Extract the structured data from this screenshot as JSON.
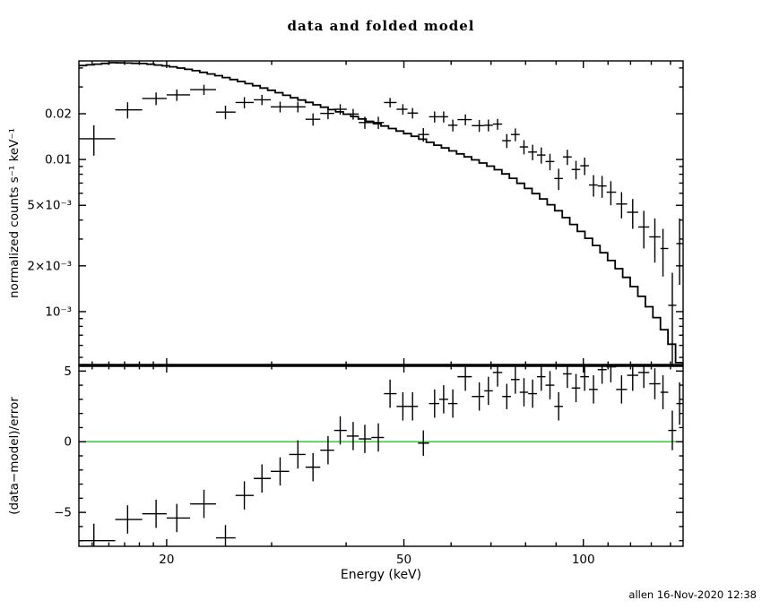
{
  "title": "data and folded model",
  "footer": "allen 16-Nov-2020 12:38",
  "colors": {
    "foreground": "#000000",
    "background": "#ffffff",
    "zero_line": "#00dd00"
  },
  "chart_data": [
    {
      "type": "scatter",
      "panel": "top",
      "title": "data and folded model",
      "xlabel": "Energy (keV)",
      "ylabel": "normalized counts s⁻¹ keV⁻¹",
      "xscale": "log",
      "yscale": "log",
      "xlim": [
        14.25,
        147
      ],
      "ylim": [
        0.000443,
        0.0445
      ],
      "grid": false,
      "legend": "none",
      "xticks": {
        "major": [
          {
            "v": 20,
            "label": "20"
          },
          {
            "v": 50,
            "label": "50"
          },
          {
            "v": 100,
            "label": "100"
          }
        ],
        "minor": [
          15,
          16,
          17,
          18,
          19,
          30,
          40,
          60,
          70,
          80,
          90,
          110,
          120,
          130,
          140
        ]
      },
      "yticks": {
        "major": [
          {
            "v": 0.02,
            "label": "0.02"
          },
          {
            "v": 0.01,
            "label": "0.01"
          },
          {
            "v": 0.005,
            "label": "5×10⁻³"
          },
          {
            "v": 0.002,
            "label": "2×10⁻³"
          },
          {
            "v": 0.001,
            "label": "10⁻³"
          }
        ],
        "minor": [
          0.04,
          0.03,
          0.009,
          0.008,
          0.007,
          0.006,
          0.004,
          0.003,
          0.0009,
          0.0008,
          0.0007,
          0.0006,
          0.0005
        ]
      },
      "series": [
        {
          "name": "data",
          "style": "cross-error-bars",
          "columns": [
            "E_keV",
            "E_lo",
            "E_hi",
            "rate",
            "rate_err",
            "resid_sigma",
            "resid_err"
          ],
          "points": [
            [
              15.1,
              13.9,
              16.4,
              0.0137,
              0.0031,
              -7.0,
              1.2
            ],
            [
              17.2,
              16.4,
              18.2,
              0.0212,
              0.0026,
              -5.5,
              1.0
            ],
            [
              19.2,
              18.2,
              20.0,
              0.0252,
              0.0024,
              -5.1,
              1.0
            ],
            [
              20.8,
              20.0,
              21.9,
              0.0266,
              0.0023,
              -5.4,
              1.0
            ],
            [
              23.1,
              21.9,
              24.2,
              0.0288,
              0.0022,
              -4.4,
              1.0
            ],
            [
              25.1,
              24.2,
              26.1,
              0.0205,
              0.0021,
              -6.8,
              0.9
            ],
            [
              27.0,
              26.1,
              28.0,
              0.0237,
              0.002,
              -3.8,
              1.0
            ],
            [
              28.9,
              28.0,
              29.9,
              0.0247,
              0.0019,
              -2.6,
              1.0
            ],
            [
              31.0,
              29.9,
              32.1,
              0.0222,
              0.0018,
              -2.1,
              1.0
            ],
            [
              33.2,
              32.1,
              34.2,
              0.0222,
              0.0018,
              -0.9,
              1.0
            ],
            [
              35.2,
              34.2,
              36.2,
              0.0184,
              0.0017,
              -1.8,
              1.0
            ],
            [
              37.3,
              36.2,
              38.2,
              0.0201,
              0.0017,
              -0.6,
              1.0
            ],
            [
              39.1,
              38.2,
              40.1,
              0.0214,
              0.0017,
              0.8,
              1.0
            ],
            [
              41.1,
              40.1,
              42.0,
              0.0199,
              0.0016,
              0.4,
              1.0
            ],
            [
              43.0,
              42.0,
              44.1,
              0.0175,
              0.0016,
              0.2,
              1.0
            ],
            [
              45.3,
              44.1,
              46.3,
              0.0175,
              0.0016,
              0.3,
              1.0
            ],
            [
              47.4,
              46.3,
              48.6,
              0.0237,
              0.0017,
              3.4,
              1.0
            ],
            [
              49.8,
              48.6,
              50.7,
              0.0214,
              0.0017,
              2.5,
              1.0
            ],
            [
              51.7,
              50.7,
              52.8,
              0.0202,
              0.0016,
              2.5,
              1.0
            ],
            [
              53.9,
              52.8,
              55.1,
              0.0146,
              0.0015,
              -0.1,
              0.9
            ],
            [
              56.3,
              55.1,
              57.3,
              0.0191,
              0.0016,
              2.7,
              1.0
            ],
            [
              58.3,
              57.3,
              59.3,
              0.0191,
              0.0016,
              3.0,
              1.0
            ],
            [
              60.4,
              59.3,
              61.5,
              0.0168,
              0.0015,
              2.7,
              1.0
            ],
            [
              63.4,
              61.5,
              65.0,
              0.0183,
              0.0015,
              4.6,
              1.0
            ],
            [
              66.9,
              65.0,
              68.2,
              0.0167,
              0.0015,
              3.2,
              1.0
            ],
            [
              69.3,
              68.2,
              70.5,
              0.0168,
              0.0015,
              3.6,
              1.0
            ],
            [
              71.8,
              70.5,
              73.1,
              0.0171,
              0.0014,
              4.9,
              1.0
            ],
            [
              74.4,
              73.1,
              75.6,
              0.0133,
              0.0014,
              3.2,
              0.9
            ],
            [
              76.9,
              75.6,
              78.2,
              0.0146,
              0.0014,
              4.4,
              1.0
            ],
            [
              79.5,
              78.2,
              80.8,
              0.0121,
              0.0013,
              3.5,
              1.0
            ],
            [
              82.2,
              80.8,
              83.6,
              0.0112,
              0.0013,
              3.4,
              1.0
            ],
            [
              85.0,
              83.6,
              86.4,
              0.0107,
              0.0013,
              4.6,
              1.0
            ],
            [
              87.9,
              86.4,
              89.4,
              0.0097,
              0.0012,
              4.0,
              1.0
            ],
            [
              90.9,
              89.4,
              92.4,
              0.0075,
              0.0012,
              2.5,
              1.0
            ],
            [
              94.0,
              92.4,
              95.6,
              0.0104,
              0.0012,
              4.8,
              1.0
            ],
            [
              97.2,
              95.6,
              98.8,
              0.0086,
              0.0012,
              3.8,
              1.0
            ],
            [
              100.5,
              98.8,
              102.2,
              0.0091,
              0.0012,
              4.6,
              1.0
            ],
            [
              104.0,
              102.2,
              105.7,
              0.0068,
              0.0011,
              3.7,
              1.0
            ],
            [
              107.5,
              105.7,
              109.4,
              0.0067,
              0.0011,
              5.1,
              1.0
            ],
            [
              111.2,
              109.4,
              113.5,
              0.0061,
              0.0011,
              5.3,
              1.1
            ],
            [
              115.9,
              113.5,
              118.4,
              0.0051,
              0.001,
              3.7,
              1.0
            ],
            [
              121.0,
              118.4,
              123.6,
              0.0045,
              0.001,
              4.7,
              1.1
            ],
            [
              126.3,
              123.6,
              129.0,
              0.0036,
              0.001,
              4.9,
              1.1
            ],
            [
              131.8,
              129.0,
              134.7,
              0.0031,
              0.001,
              4.1,
              1.1
            ],
            [
              136.0,
              134.7,
              138.8,
              0.0026,
              0.0009,
              3.5,
              1.2
            ],
            [
              141.0,
              138.8,
              143.2,
              0.0011,
              0.0007,
              0.8,
              1.4
            ],
            [
              145.0,
              143.2,
              147.0,
              0.0028,
              0.0013,
              2.7,
              1.5
            ]
          ]
        },
        {
          "name": "folded model",
          "style": "steps",
          "E": [
            14.3,
            16,
            18,
            20,
            22,
            24,
            26,
            28,
            30,
            32,
            34.5,
            37,
            40,
            43,
            46,
            49,
            52,
            55,
            58.5,
            62,
            66,
            70,
            74.5,
            79,
            84,
            89,
            94.5,
            100,
            106,
            112,
            118,
            124,
            130,
            135,
            139,
            142,
            145,
            147
          ],
          "rate": [
            0.0415,
            0.0433,
            0.0428,
            0.041,
            0.0385,
            0.0357,
            0.033,
            0.0304,
            0.028,
            0.0257,
            0.0235,
            0.0215,
            0.0196,
            0.0179,
            0.0165,
            0.0152,
            0.014,
            0.0128,
            0.0117,
            0.0107,
            0.0097,
            0.0088,
            0.0077,
            0.0066,
            0.0056,
            0.0047,
            0.0038,
            0.0031,
            0.0025,
            0.002,
            0.00158,
            0.00123,
            0.00095,
            0.00075,
            0.0006,
            0.00049,
            0.00039,
            0.00032
          ]
        }
      ]
    },
    {
      "type": "scatter",
      "panel": "bottom",
      "xlabel": "Energy (keV)",
      "ylabel": "(data−model)/error",
      "xscale": "log",
      "yscale": "linear",
      "xlim": [
        14.25,
        147
      ],
      "ylim": [
        -7.4,
        5.4
      ],
      "grid": false,
      "zero_line": {
        "y": 0,
        "color": "#00dd00"
      },
      "yticks": {
        "major": [
          {
            "v": 5,
            "label": "5"
          },
          {
            "v": 0,
            "label": "0"
          },
          {
            "v": -5,
            "label": "−5"
          }
        ],
        "minor": [
          4,
          3,
          2,
          1,
          -1,
          -2,
          -3,
          -4,
          -6,
          -7
        ]
      },
      "series": [
        {
          "name": "(data−model)/error",
          "style": "cross-error-bars",
          "source": "chart_data.0.series.0",
          "columns_used": [
            "E_keV",
            "E_lo",
            "E_hi",
            "resid_sigma",
            "resid_err"
          ]
        }
      ]
    }
  ]
}
